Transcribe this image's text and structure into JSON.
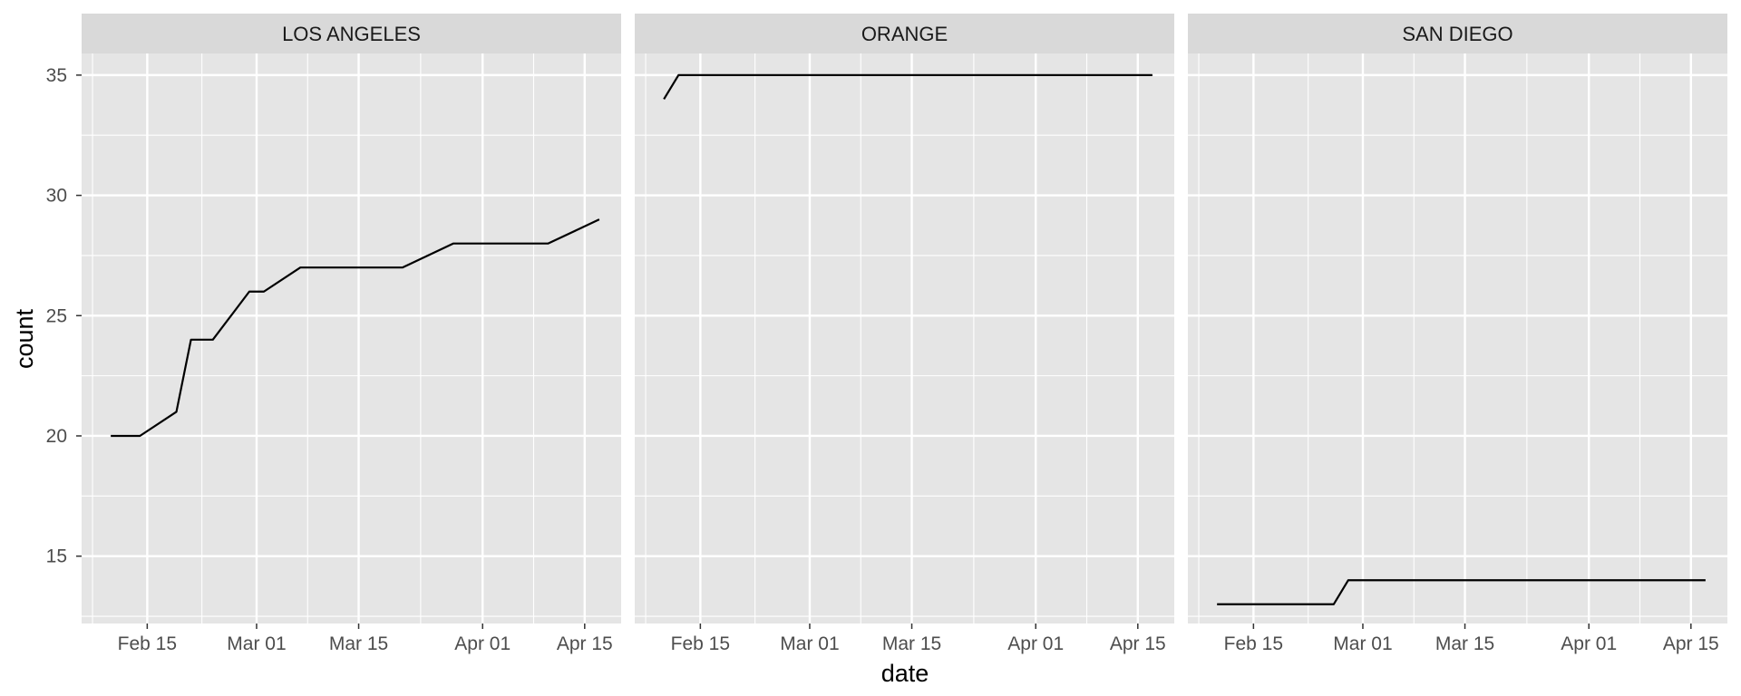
{
  "chart_data": {
    "type": "line",
    "xlabel": "date",
    "ylabel": "count",
    "x_ticks": [
      "2020-02-15",
      "2020-03-01",
      "2020-03-15",
      "2020-04-01",
      "2020-04-15"
    ],
    "x_tick_labels": [
      "Feb 15",
      "Mar 01",
      "Mar 15",
      "Apr 01",
      "Apr 15"
    ],
    "xlim": [
      "2020-02-06",
      "2020-04-20"
    ],
    "y_ticks": [
      15,
      20,
      25,
      30,
      35
    ],
    "ylim": [
      12.2,
      35.9
    ],
    "grid": true,
    "line_color": "#000000",
    "panel_background": "#e5e5e5",
    "strip_background": "#d9d9d9",
    "grid_color": "#ffffff",
    "facets": [
      {
        "label": "LOS ANGELES",
        "points": [
          {
            "x": "2020-02-10",
            "y": 20
          },
          {
            "x": "2020-02-14",
            "y": 20
          },
          {
            "x": "2020-02-19",
            "y": 21
          },
          {
            "x": "2020-02-21",
            "y": 24
          },
          {
            "x": "2020-02-24",
            "y": 24
          },
          {
            "x": "2020-02-29",
            "y": 26
          },
          {
            "x": "2020-03-02",
            "y": 26
          },
          {
            "x": "2020-03-07",
            "y": 27
          },
          {
            "x": "2020-03-21",
            "y": 27
          },
          {
            "x": "2020-03-28",
            "y": 28
          },
          {
            "x": "2020-04-10",
            "y": 28
          },
          {
            "x": "2020-04-17",
            "y": 29
          }
        ]
      },
      {
        "label": "ORANGE",
        "points": [
          {
            "x": "2020-02-10",
            "y": 34
          },
          {
            "x": "2020-02-12",
            "y": 35
          },
          {
            "x": "2020-04-17",
            "y": 35
          }
        ]
      },
      {
        "label": "SAN DIEGO",
        "points": [
          {
            "x": "2020-02-10",
            "y": 13
          },
          {
            "x": "2020-02-26",
            "y": 13
          },
          {
            "x": "2020-02-28",
            "y": 14
          },
          {
            "x": "2020-04-17",
            "y": 14
          }
        ]
      }
    ]
  }
}
